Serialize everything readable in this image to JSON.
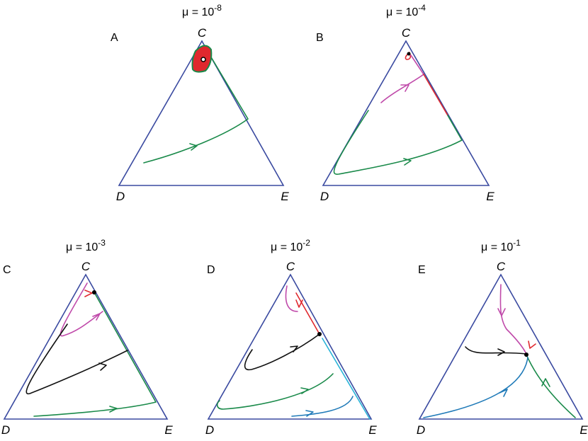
{
  "panels": [
    {
      "letter": "A",
      "mu": "μ = 10",
      "exponent": "-8",
      "top": "C",
      "left": "D",
      "right": "E"
    },
    {
      "letter": "B",
      "mu": "μ = 10",
      "exponent": "-4",
      "top": "C",
      "left": "D",
      "right": "E"
    },
    {
      "letter": "C",
      "mu": "μ = 10",
      "exponent": "-3",
      "top": "C",
      "left": "D",
      "right": "E"
    },
    {
      "letter": "D",
      "mu": "μ = 10",
      "exponent": "-2",
      "top": "C",
      "left": "D",
      "right": "E"
    },
    {
      "letter": "E",
      "mu": "μ = 10",
      "exponent": "-1",
      "top": "C",
      "left": "D",
      "right": "E"
    }
  ]
}
